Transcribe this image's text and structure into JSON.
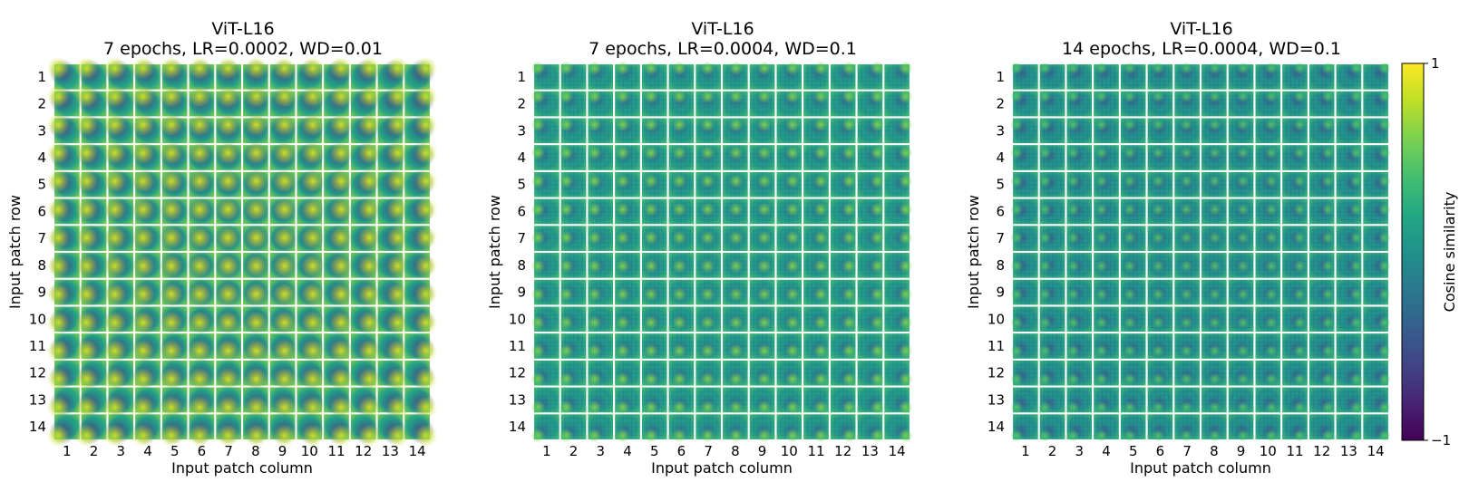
{
  "chart_data": {
    "type": "heatmap",
    "grid_size": 14,
    "row_ticks": [
      "1",
      "2",
      "3",
      "4",
      "5",
      "6",
      "7",
      "8",
      "9",
      "10",
      "11",
      "12",
      "13",
      "14"
    ],
    "col_ticks": [
      "1",
      "2",
      "3",
      "4",
      "5",
      "6",
      "7",
      "8",
      "9",
      "10",
      "11",
      "12",
      "13",
      "14"
    ],
    "xlabel": "Input patch column",
    "ylabel": "Input patch row",
    "panels": [
      {
        "title": "ViT-L16",
        "subtitle": "7 epochs, LR=0.0002, WD=0.01"
      },
      {
        "title": "ViT-L16",
        "subtitle": "7 epochs, LR=0.0004, WD=0.1"
      },
      {
        "title": "ViT-L16",
        "subtitle": "14 epochs, LR=0.0004, WD=0.1"
      }
    ],
    "colorbar": {
      "label": "Cosine similarity",
      "min": -1,
      "max": 1,
      "min_label": "−1",
      "max_label": "1",
      "colormap": "viridis"
    }
  }
}
